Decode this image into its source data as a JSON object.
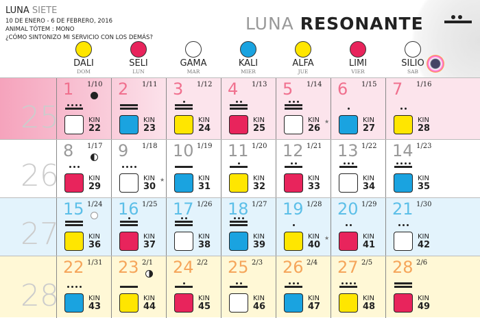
{
  "header": {
    "moon_label": "LUNA",
    "moon_name": "SIETE",
    "dates": "10 DE ENERO - 6 DE FEBRERO, 2016",
    "totem": "ANIMAL TÓTEM : MONO",
    "question": "¿CÓMO SINTONIZO MI SERVICIO CON LOS DEMÁS?",
    "title_a": "LUNA",
    "title_b": "RESONANTE"
  },
  "weekdays": [
    {
      "name": "DALI",
      "day": "DOM",
      "color": "#ffe600"
    },
    {
      "name": "SELI",
      "day": "LUN",
      "color": "#e8245c"
    },
    {
      "name": "GAMA",
      "day": "MAR",
      "color": "#ffffff"
    },
    {
      "name": "KALI",
      "day": "MIER",
      "color": "#1aa3e0"
    },
    {
      "name": "ALFA",
      "day": "JUE",
      "color": "#ffe600"
    },
    {
      "name": "LIMI",
      "day": "VIER",
      "color": "#e8245c"
    },
    {
      "name": "SILIO",
      "day": "SAB",
      "color": "#ffffff"
    }
  ],
  "weeks": [
    {
      "number": "25",
      "bg": "#fce4ec",
      "daycolor": "#f0708e",
      "days": [
        {
          "day": "1",
          "date": "1/10",
          "kin_label": "KIN",
          "kin": "22",
          "moon": "new"
        },
        {
          "day": "2",
          "date": "1/11",
          "kin_label": "KIN",
          "kin": "23"
        },
        {
          "day": "3",
          "date": "1/12",
          "kin_label": "KIN",
          "kin": "24"
        },
        {
          "day": "4",
          "date": "1/13",
          "kin_label": "KIN",
          "kin": "25"
        },
        {
          "day": "5",
          "date": "1/14",
          "kin_label": "KIN",
          "kin": "26",
          "star": "★"
        },
        {
          "day": "6",
          "date": "1/15",
          "kin_label": "KIN",
          "kin": "27"
        },
        {
          "day": "7",
          "date": "1/16",
          "kin_label": "KIN",
          "kin": "28"
        }
      ]
    },
    {
      "number": "26",
      "bg": "#ffffff",
      "daycolor": "#999999",
      "days": [
        {
          "day": "8",
          "date": "1/17",
          "kin_label": "KIN",
          "kin": "29",
          "moon": "first-quarter"
        },
        {
          "day": "9",
          "date": "1/18",
          "kin_label": "KIN",
          "kin": "30",
          "star": "★"
        },
        {
          "day": "10",
          "date": "1/19",
          "kin_label": "KIN",
          "kin": "31"
        },
        {
          "day": "11",
          "date": "1/20",
          "kin_label": "KIN",
          "kin": "32"
        },
        {
          "day": "12",
          "date": "1/21",
          "kin_label": "KIN",
          "kin": "33"
        },
        {
          "day": "13",
          "date": "1/22",
          "kin_label": "KIN",
          "kin": "34"
        },
        {
          "day": "14",
          "date": "1/23",
          "kin_label": "KIN",
          "kin": "35"
        }
      ]
    },
    {
      "number": "27",
      "bg": "#e3f3fc",
      "daycolor": "#5cbfe8",
      "days": [
        {
          "day": "15",
          "date": "1/24",
          "kin_label": "KIN",
          "kin": "36",
          "moon": "full"
        },
        {
          "day": "16",
          "date": "1/25",
          "kin_label": "KIN",
          "kin": "37"
        },
        {
          "day": "17",
          "date": "1/26",
          "kin_label": "KIN",
          "kin": "38"
        },
        {
          "day": "18",
          "date": "1/27",
          "kin_label": "KIN",
          "kin": "39"
        },
        {
          "day": "19",
          "date": "1/28",
          "kin_label": "KIN",
          "kin": "40",
          "star": "★"
        },
        {
          "day": "20",
          "date": "1/29",
          "kin_label": "KIN",
          "kin": "41"
        },
        {
          "day": "21",
          "date": "1/30",
          "kin_label": "KIN",
          "kin": "42"
        }
      ]
    },
    {
      "number": "28",
      "bg": "#fff8d6",
      "daycolor": "#f5a55a",
      "days": [
        {
          "day": "22",
          "date": "1/31",
          "kin_label": "KIN",
          "kin": "43"
        },
        {
          "day": "23",
          "date": "2/1",
          "kin_label": "KIN",
          "kin": "44",
          "moon": "last-quarter"
        },
        {
          "day": "24",
          "date": "2/2",
          "kin_label": "KIN",
          "kin": "45"
        },
        {
          "day": "25",
          "date": "2/3",
          "kin_label": "KIN",
          "kin": "46"
        },
        {
          "day": "26",
          "date": "2/4",
          "kin_label": "KIN",
          "kin": "47"
        },
        {
          "day": "27",
          "date": "2/5",
          "kin_label": "KIN",
          "kin": "48"
        },
        {
          "day": "28",
          "date": "2/6",
          "kin_label": "KIN",
          "kin": "49"
        }
      ]
    }
  ],
  "seal_colors": {
    "red": "#e8245c",
    "white": "#ffffff",
    "blue": "#1aa3e0",
    "yellow": "#ffe600"
  }
}
